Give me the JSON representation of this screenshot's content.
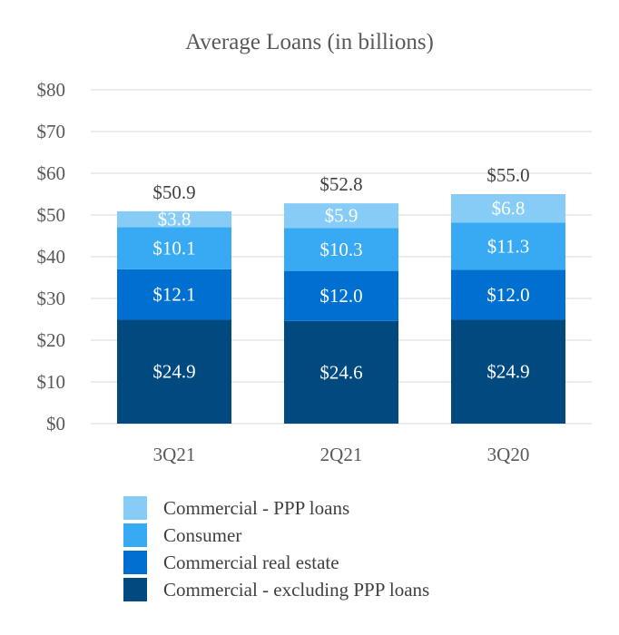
{
  "chart_data": {
    "type": "bar",
    "stacked": true,
    "title": "Average Loans (in billions)",
    "xlabel": "",
    "ylabel": "",
    "ylim": [
      0,
      80
    ],
    "yticks": [
      "$0",
      "$10",
      "$20",
      "$30",
      "$40",
      "$50",
      "$60",
      "$70",
      "$80"
    ],
    "grid": true,
    "legend_position": "bottom",
    "categories": [
      "3Q21",
      "2Q21",
      "3Q20"
    ],
    "totals": [
      "$50.9",
      "$52.8",
      "$55.0"
    ],
    "series": [
      {
        "name": "Commercial - excluding PPP loans",
        "color": "#004a80",
        "values": [
          24.9,
          24.6,
          24.9
        ],
        "labels": [
          "$24.9",
          "$24.6",
          "$24.9"
        ]
      },
      {
        "name": "Commercial real estate",
        "color": "#0070d0",
        "values": [
          12.1,
          12.0,
          12.0
        ],
        "labels": [
          "$12.1",
          "$12.0",
          "$12.0"
        ]
      },
      {
        "name": "Consumer",
        "color": "#38aaf4",
        "values": [
          10.1,
          10.3,
          11.3
        ],
        "labels": [
          "$10.1",
          "$10.3",
          "$11.3"
        ]
      },
      {
        "name": "Commercial - PPP loans",
        "color": "#86ccf7",
        "values": [
          3.8,
          5.9,
          6.8
        ],
        "labels": [
          "$3.8",
          "$5.9",
          "$6.8"
        ]
      }
    ]
  }
}
